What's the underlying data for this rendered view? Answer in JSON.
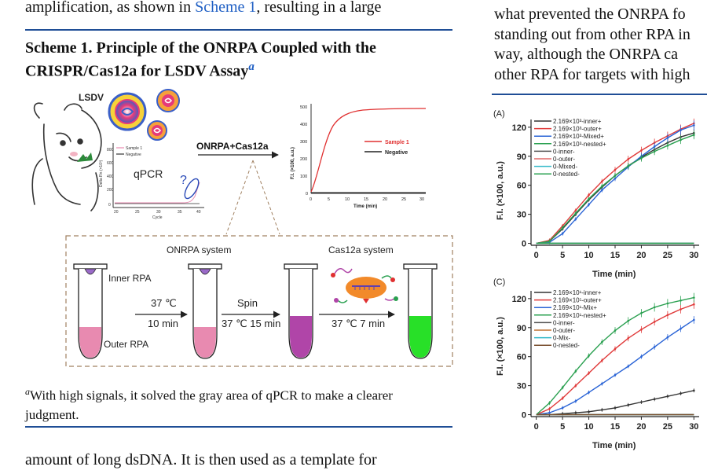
{
  "left_column": {
    "top_line_pre": "amplification, as shown in ",
    "top_line_link": "Scheme 1",
    "top_line_post": ", resulting in a large",
    "scheme_title_line1": "Scheme 1. Principle of the ONRPA Coupled with the",
    "scheme_title_line2": "CRISPR/Cas12a for LSDV Assay",
    "scheme_title_footnote_mark": "a",
    "footnote_mark": "a",
    "footnote_line1": "With high signals, it solved the gray area of qPCR to make a clearer",
    "footnote_line2": "judgment.",
    "bottom_line": "amount of long dsDNA. It is then used as a template for"
  },
  "right_column": {
    "line1": "what prevented the ONRPA fo",
    "line2": "standing out from other RPA in",
    "line3": "way, although the ONRPA ca",
    "line4": "other RPA for targets with high"
  },
  "scheme": {
    "lsdv_label": "LSDV",
    "qpcr_label": "qPCR",
    "question_mark": "?",
    "qpcr_ylabel": "Delta Rn (×10³)",
    "qpcr_xlabel": "Cycle",
    "qpcr_yticks": [
      "800",
      "600",
      "400",
      "200",
      "0"
    ],
    "qpcr_xticks": [
      "20",
      "25",
      "30",
      "35",
      "40"
    ],
    "qpcr_legend_sample": "Sample 1",
    "qpcr_legend_negative": "Negative",
    "arrow_label": "ONRPA+Cas12a",
    "fl_ylabel": "F.I. (×100, a.u.)",
    "fl_xlabel": "Time (min)",
    "fl_yticks": [
      "500",
      "400",
      "300",
      "200",
      "100",
      "0"
    ],
    "fl_xticks": [
      "0",
      "5",
      "10",
      "15",
      "20",
      "25",
      "30"
    ],
    "fl_legend_sample": "Sample 1",
    "fl_legend_negative": "Negative",
    "onrpa_system": "ONRPA system",
    "cas12a_system": "Cas12a system",
    "inner_rpa": "Inner RPA",
    "outer_rpa": "Outer RPA",
    "step1_temp": "37 ℃",
    "step1_time": "10 min",
    "step2_label": "Spin",
    "step2_cond": "37 ℃ 15 min",
    "step3_cond": "37 ℃ 7 min",
    "colors": {
      "tube_pink": "#e88ab0",
      "tube_magenta": "#b045a8",
      "tube_green": "#28e028",
      "red_curve": "#e03030",
      "dashed_box": "#a08060",
      "rule_blue": "#1f4e96"
    }
  },
  "charts": {
    "panelA": {
      "label": "(A)",
      "xlabel": "Time (min)",
      "ylabel": "F.I. (×100, a.u.)",
      "yticks": [
        "120",
        "90",
        "60",
        "30",
        "0"
      ],
      "xticks": [
        "0",
        "5",
        "10",
        "15",
        "20",
        "25",
        "30"
      ],
      "legend": [
        {
          "text": "2.169×10³-inner+",
          "color": "#333333"
        },
        {
          "text": "2.169×10³-outer+",
          "color": "#e03a3a"
        },
        {
          "text": "2.169×10³-Mixed+",
          "color": "#2a64d6"
        },
        {
          "text": "2.169×10³-nested+",
          "color": "#2aa050"
        },
        {
          "text": "0-inner-",
          "color": "#555555"
        },
        {
          "text": "0-outer-",
          "color": "#e06a6a"
        },
        {
          "text": "0-Mixed-",
          "color": "#30b8c8"
        },
        {
          "text": "0-nested-",
          "color": "#2aa050"
        }
      ]
    },
    "panelC": {
      "label": "(C)",
      "xlabel": "Time (min)",
      "ylabel": "F.I. (×100, a.u.)",
      "yticks": [
        "120",
        "90",
        "60",
        "30",
        "0"
      ],
      "xticks": [
        "0",
        "5",
        "10",
        "15",
        "20",
        "25",
        "30"
      ],
      "legend": [
        {
          "text": "2.169×10¹-inner+",
          "color": "#333333"
        },
        {
          "text": "2.169×10¹-outer+",
          "color": "#e03a3a"
        },
        {
          "text": "2.169×10¹-Mix+",
          "color": "#2a64d6"
        },
        {
          "text": "2.169×10¹-nested+",
          "color": "#2aa050"
        },
        {
          "text": "0-inner-",
          "color": "#555555"
        },
        {
          "text": "0-outer-",
          "color": "#c07030"
        },
        {
          "text": "0-Mix-",
          "color": "#30b8c8"
        },
        {
          "text": "0-nested-",
          "color": "#7a5030"
        }
      ]
    }
  },
  "chart_data": [
    {
      "type": "line",
      "title": "(A)",
      "xlabel": "Time (min)",
      "ylabel": "F.I. (×100, a.u.)",
      "xlim": [
        -1,
        31
      ],
      "ylim": [
        -2,
        128
      ],
      "x": [
        0,
        2.5,
        5,
        7.5,
        10,
        12.5,
        15,
        17.5,
        20,
        22.5,
        25,
        27.5,
        30
      ],
      "series": [
        {
          "name": "2.169×10³-inner+",
          "color": "#333333",
          "values": [
            0,
            2,
            15,
            30,
            45,
            58,
            70,
            80,
            89,
            97,
            104,
            110,
            114
          ]
        },
        {
          "name": "2.169×10³-outer+",
          "color": "#e03a3a",
          "values": [
            0,
            3,
            18,
            34,
            50,
            64,
            76,
            87,
            96,
            104,
            111,
            118,
            124
          ]
        },
        {
          "name": "2.169×10³-Mixed+",
          "color": "#2a64d6",
          "values": [
            0,
            1,
            10,
            25,
            40,
            55,
            67,
            79,
            90,
            100,
            109,
            117,
            122
          ]
        },
        {
          "name": "2.169×10³-nested+",
          "color": "#2aa050",
          "values": [
            0,
            2,
            16,
            31,
            46,
            59,
            70,
            80,
            88,
            95,
            101,
            107,
            112
          ]
        },
        {
          "name": "0-inner-",
          "color": "#555555",
          "values": [
            0,
            0,
            0,
            0,
            0,
            0,
            0,
            0,
            0,
            0,
            0,
            0,
            0
          ]
        },
        {
          "name": "0-outer-",
          "color": "#e06a6a",
          "values": [
            0,
            0,
            0,
            0,
            0,
            0,
            0,
            0,
            0,
            0,
            0,
            0,
            0
          ]
        },
        {
          "name": "0-Mixed-",
          "color": "#30b8c8",
          "values": [
            0,
            0,
            0,
            0,
            0,
            0,
            0,
            0,
            0,
            0,
            0,
            0,
            0
          ]
        },
        {
          "name": "0-nested-",
          "color": "#2aa050",
          "values": [
            0,
            0,
            0,
            0,
            0,
            0,
            0,
            0,
            0,
            0,
            0,
            0,
            0
          ]
        }
      ]
    },
    {
      "type": "line",
      "title": "(C)",
      "xlabel": "Time (min)",
      "ylabel": "F.I. (×100, a.u.)",
      "xlim": [
        -1,
        31
      ],
      "ylim": [
        -2,
        128
      ],
      "x": [
        0,
        2.5,
        5,
        7.5,
        10,
        12.5,
        15,
        17.5,
        20,
        22.5,
        25,
        27.5,
        30
      ],
      "series": [
        {
          "name": "2.169×10¹-inner+",
          "color": "#333333",
          "values": [
            0,
            0,
            1,
            2,
            3,
            5,
            7,
            10,
            13,
            16,
            19,
            22,
            25
          ]
        },
        {
          "name": "2.169×10¹-outer+",
          "color": "#e03a3a",
          "values": [
            0,
            6,
            17,
            30,
            43,
            56,
            68,
            79,
            88,
            96,
            103,
            109,
            114
          ]
        },
        {
          "name": "2.169×10¹-Mix+",
          "color": "#2a64d6",
          "values": [
            0,
            2,
            7,
            14,
            23,
            32,
            41,
            50,
            60,
            70,
            80,
            89,
            98
          ]
        },
        {
          "name": "2.169×10¹-nested+",
          "color": "#2aa050",
          "values": [
            0,
            12,
            28,
            45,
            61,
            75,
            87,
            97,
            105,
            111,
            115,
            118,
            121
          ]
        },
        {
          "name": "0-inner-",
          "color": "#555555",
          "values": [
            0,
            0,
            0,
            0,
            0,
            0,
            0,
            0,
            0,
            0,
            0,
            0,
            0
          ]
        },
        {
          "name": "0-outer-",
          "color": "#c07030",
          "values": [
            0,
            0,
            0,
            0,
            0,
            0,
            0,
            0,
            0,
            0,
            0,
            0,
            0
          ]
        },
        {
          "name": "0-Mix-",
          "color": "#30b8c8",
          "values": [
            0,
            0,
            0,
            0,
            0,
            0,
            0,
            0,
            0,
            0,
            0,
            0,
            0
          ]
        },
        {
          "name": "0-nested-",
          "color": "#7a5030",
          "values": [
            0,
            0,
            0,
            0,
            0,
            0,
            0,
            0,
            0,
            0,
            0,
            0,
            0
          ]
        }
      ]
    },
    {
      "type": "line",
      "title": "",
      "xlabel": "Time (min)",
      "ylabel": "F.I. (×100, a.u.)",
      "xlim": [
        0,
        30
      ],
      "ylim": [
        0,
        500
      ],
      "x": [
        0,
        1,
        2,
        3,
        4,
        5,
        6,
        8,
        10,
        15,
        20,
        25,
        30
      ],
      "series": [
        {
          "name": "Sample 1",
          "color": "#e03030",
          "values": [
            5,
            60,
            150,
            260,
            350,
            410,
            445,
            470,
            480,
            485,
            487,
            488,
            490
          ]
        },
        {
          "name": "Negative",
          "color": "#222222",
          "values": [
            0,
            0,
            0,
            0,
            0,
            0,
            0,
            0,
            0,
            0,
            0,
            0,
            0
          ]
        }
      ]
    }
  ]
}
